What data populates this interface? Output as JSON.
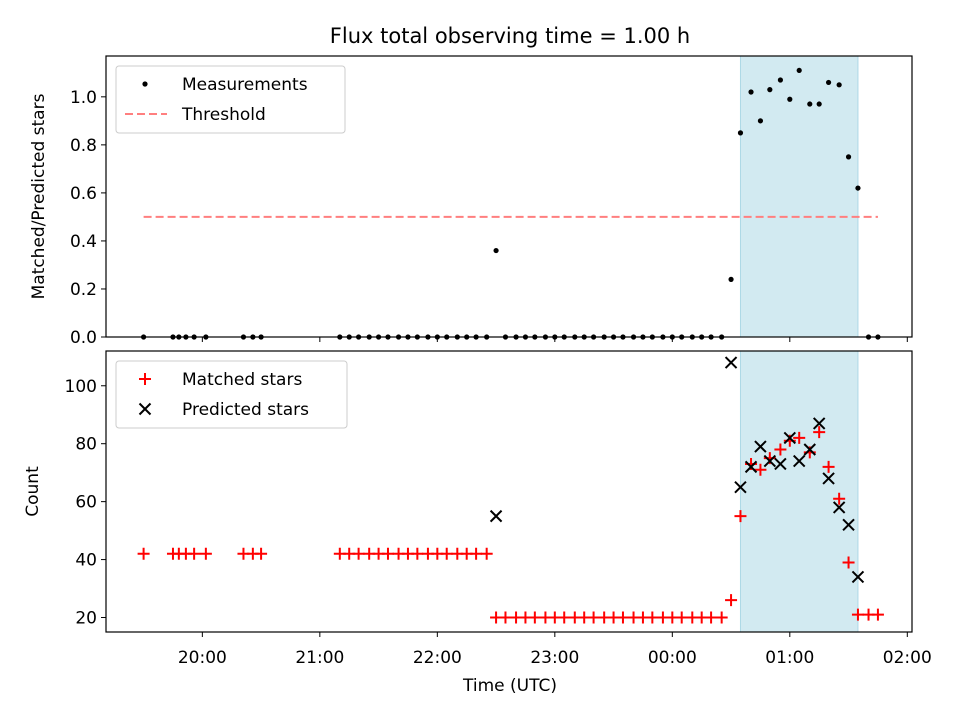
{
  "title": "Flux total observing time = 1.00 h",
  "xlabel": "Time (UTC)",
  "x_axis_unit": "hours since 19:00 UTC",
  "x_ticks": [
    {
      "v": 1,
      "label": "20:00"
    },
    {
      "v": 2,
      "label": "21:00"
    },
    {
      "v": 3,
      "label": "22:00"
    },
    {
      "v": 4,
      "label": "23:00"
    },
    {
      "v": 5,
      "label": "00:00"
    },
    {
      "v": 6,
      "label": "01:00"
    },
    {
      "v": 7,
      "label": "02:00"
    }
  ],
  "xlim": [
    0.18,
    7.04
  ],
  "highlight_span": [
    5.58,
    6.58
  ],
  "colors": {
    "measurement": "#000000",
    "threshold": "#ff7f7f",
    "matched": "#ff0000",
    "predicted": "#000000",
    "highlight": "#add8e6"
  },
  "chart_data": [
    {
      "type": "scatter",
      "ylabel": "Matched/Predicted stars",
      "ylim": [
        0.0,
        1.17
      ],
      "y_ticks": [
        "0.0",
        "0.2",
        "0.4",
        "0.6",
        "0.8",
        "1.0"
      ],
      "y_tick_values": [
        0.0,
        0.2,
        0.4,
        0.6,
        0.8,
        1.0
      ],
      "legend": {
        "position": "top-left",
        "entries": [
          "Measurements",
          "Threshold"
        ]
      },
      "threshold": {
        "name": "Threshold",
        "y": 0.5,
        "x_range": [
          0.5,
          6.75
        ]
      },
      "series": [
        {
          "name": "Measurements",
          "x": [
            0.5,
            0.75,
            0.8,
            0.86,
            0.93,
            1.03,
            1.35,
            1.43,
            1.5,
            2.17,
            2.25,
            2.33,
            2.42,
            2.5,
            2.58,
            2.67,
            2.75,
            2.83,
            2.92,
            3.0,
            3.08,
            3.17,
            3.25,
            3.33,
            3.42,
            3.5,
            3.58,
            3.67,
            3.75,
            3.83,
            3.92,
            4.0,
            4.08,
            4.17,
            4.25,
            4.33,
            4.42,
            4.5,
            4.58,
            4.67,
            4.75,
            4.83,
            4.92,
            5.0,
            5.08,
            5.17,
            5.25,
            5.33,
            5.42,
            5.5,
            5.58,
            5.67,
            5.75,
            5.83,
            5.92,
            6.0,
            6.08,
            6.17,
            6.25,
            6.33,
            6.42,
            6.5,
            6.58,
            6.67,
            6.75
          ],
          "y": [
            0.0,
            0.0,
            0.0,
            0.0,
            0.0,
            0.0,
            0.0,
            0.0,
            0.0,
            0.0,
            0.0,
            0.0,
            0.0,
            0.0,
            0.0,
            0.0,
            0.0,
            0.0,
            0.0,
            0.0,
            0.0,
            0.0,
            0.0,
            0.0,
            0.0,
            0.36,
            0.0,
            0.0,
            0.0,
            0.0,
            0.0,
            0.0,
            0.0,
            0.0,
            0.0,
            0.0,
            0.0,
            0.0,
            0.0,
            0.0,
            0.0,
            0.0,
            0.0,
            0.0,
            0.0,
            0.0,
            0.0,
            0.0,
            0.0,
            0.24,
            0.85,
            1.02,
            0.9,
            1.03,
            1.07,
            0.99,
            1.11,
            0.97,
            0.97,
            1.06,
            1.05,
            0.75,
            0.62,
            0.0,
            0.0
          ]
        }
      ]
    },
    {
      "type": "scatter",
      "ylabel": "Count",
      "ylim": [
        15,
        112
      ],
      "y_ticks": [
        "20",
        "40",
        "60",
        "80",
        "100"
      ],
      "y_tick_values": [
        20,
        40,
        60,
        80,
        100
      ],
      "legend": {
        "position": "top-left",
        "entries": [
          "Matched stars",
          "Predicted stars"
        ]
      },
      "series": [
        {
          "name": "Matched stars",
          "marker": "+",
          "x": [
            0.5,
            0.75,
            0.8,
            0.86,
            0.93,
            1.03,
            1.35,
            1.43,
            1.5,
            2.17,
            2.25,
            2.33,
            2.42,
            2.5,
            2.58,
            2.67,
            2.75,
            2.83,
            2.92,
            3.0,
            3.08,
            3.17,
            3.25,
            3.33,
            3.42,
            3.5,
            3.58,
            3.67,
            3.75,
            3.83,
            3.92,
            4.0,
            4.08,
            4.17,
            4.25,
            4.33,
            4.42,
            4.5,
            4.58,
            4.67,
            4.75,
            4.83,
            4.92,
            5.0,
            5.08,
            5.17,
            5.25,
            5.33,
            5.42,
            5.5,
            5.58,
            5.67,
            5.75,
            5.83,
            5.92,
            6.0,
            6.08,
            6.17,
            6.25,
            6.33,
            6.42,
            6.5,
            6.58,
            6.67,
            6.75
          ],
          "y": [
            42,
            42,
            42,
            42,
            42,
            42,
            42,
            42,
            42,
            42,
            42,
            42,
            42,
            42,
            42,
            42,
            42,
            42,
            42,
            42,
            42,
            42,
            42,
            42,
            42,
            20,
            20,
            20,
            20,
            20,
            20,
            20,
            20,
            20,
            20,
            20,
            20,
            20,
            20,
            20,
            20,
            20,
            20,
            20,
            20,
            20,
            20,
            20,
            20,
            26,
            55,
            73,
            71,
            75,
            78,
            81,
            82,
            77,
            84,
            72,
            61,
            39,
            21,
            21,
            21
          ]
        },
        {
          "name": "Predicted stars",
          "marker": "x",
          "x": [
            3.5,
            5.5,
            5.58,
            5.67,
            5.75,
            5.83,
            5.92,
            6.0,
            6.08,
            6.17,
            6.25,
            6.33,
            6.42,
            6.5,
            6.58
          ],
          "y": [
            55,
            108,
            65,
            72,
            79,
            74,
            73,
            82,
            74,
            78,
            87,
            68,
            58,
            52,
            34
          ]
        }
      ]
    }
  ]
}
